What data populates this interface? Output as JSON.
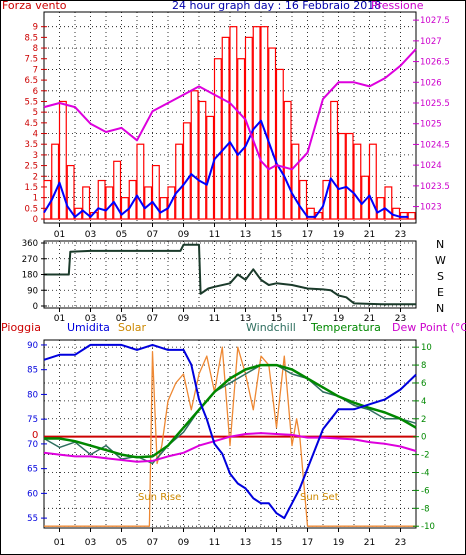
{
  "top_chart": {
    "title": "24 hour graph day : 16 Febbraio 2018",
    "left_label": "Forza vento",
    "right_label": "Pressione",
    "colors": {
      "wind": "#ff0000",
      "gust_line": "#0000ff",
      "pressure": "#dd00dd",
      "left_axis": "#cc0000",
      "right_axis": "#cc00cc"
    }
  },
  "mid_chart": {
    "right_labels": [
      "N",
      "W",
      "S",
      "E",
      "N"
    ]
  },
  "bottom_chart": {
    "labels": {
      "rain": "Pioggia",
      "humidity": "Umidita",
      "solar": "Solar",
      "windchill": "Windchill",
      "temperature": "Temperatura",
      "dewpoint": "Dew Point (°C)"
    },
    "annotations": {
      "sunrise": "Sun Rise",
      "sunset": "Sun Set",
      "rain_zero": "0"
    },
    "colors": {
      "humidity": "#0000dd",
      "solar": "#ee8833",
      "windchill": "#2f6f5f",
      "temperature": "#008800",
      "dewpoint": "#dd00dd",
      "rain": "#cc0000"
    }
  },
  "chart_data": [
    {
      "type": "line",
      "title": "24 hour graph day : 16 Febbraio 2018",
      "x_ticks": [
        "01",
        "03",
        "05",
        "07",
        "09",
        "11",
        "13",
        "15",
        "17",
        "19",
        "21",
        "23"
      ],
      "y_left_ticks": [
        "0",
        "0.5",
        "1",
        "1.5",
        "2",
        "2.5",
        "3",
        "3.5",
        "4",
        "4.5",
        "5",
        "5.5",
        "6",
        "6.5",
        "7",
        "7.5",
        "8",
        "8.5",
        "9"
      ],
      "y_left_range": [
        0,
        9.5
      ],
      "y_right_ticks": [
        "1023",
        "1023.5",
        "1024",
        "1024.5",
        "1025",
        "1025.5",
        "1026",
        "1026.5",
        "1027",
        "1027.5"
      ],
      "y_right_range": [
        1022.7,
        1027.6
      ],
      "grid": true,
      "series": [
        {
          "name": "Forza vento",
          "axis": "left",
          "style": "bars",
          "x": [
            0,
            0.5,
            1,
            1.5,
            2,
            2.5,
            3,
            3.5,
            4,
            4.5,
            5,
            5.5,
            6,
            6.5,
            7,
            7.5,
            8,
            8.5,
            9,
            9.5,
            10,
            10.5,
            11,
            11.5,
            12,
            12.5,
            13,
            13.5,
            14,
            14.5,
            15,
            15.5,
            16,
            16.5,
            17,
            17.5,
            18,
            18.5,
            19,
            19.5,
            20,
            20.5,
            21,
            21.5,
            22,
            22.5,
            23,
            23.5
          ],
          "values": [
            1.8,
            3.5,
            5.5,
            2.5,
            0.5,
            1.5,
            0.3,
            1.8,
            1.5,
            2.7,
            1,
            1.8,
            3.5,
            1.5,
            2.5,
            1,
            1.5,
            3.5,
            4.5,
            6,
            5.5,
            4.8,
            7.5,
            8.5,
            9,
            7.5,
            8.5,
            9,
            9,
            8,
            7,
            5.5,
            3.5,
            1.8,
            0.5,
            0.3,
            1.8,
            5.5,
            4,
            4,
            3.5,
            2,
            3.5,
            1,
            1.5,
            0.5,
            0.3,
            0.3
          ]
        },
        {
          "axis": "left",
          "style": "line",
          "x": [
            0,
            0.5,
            1,
            1.5,
            2,
            2.5,
            3,
            3.5,
            4,
            4.5,
            5,
            5.5,
            6,
            6.5,
            7,
            7.5,
            8,
            8.5,
            9,
            9.5,
            10,
            10.5,
            11,
            11.5,
            12,
            12.5,
            13,
            13.5,
            14,
            14.5,
            15,
            15.5,
            16,
            16.5,
            17,
            17.5,
            18,
            18.5,
            19,
            19.5,
            20,
            20.5,
            21,
            21.5,
            22,
            22.5,
            23,
            23.5
          ],
          "values": [
            0.3,
            0.9,
            1.7,
            0.6,
            0.1,
            0.4,
            0.1,
            0.5,
            0.4,
            0.8,
            0.2,
            0.5,
            1.1,
            0.5,
            0.8,
            0.3,
            0.5,
            1.2,
            1.6,
            2.1,
            1.8,
            1.6,
            2.8,
            3.2,
            3.6,
            3.0,
            3.4,
            4.2,
            4.6,
            3.6,
            2.6,
            2.0,
            1.2,
            0.6,
            0.1,
            0.1,
            0.6,
            1.9,
            1.4,
            1.5,
            1.2,
            0.7,
            1.1,
            0.3,
            0.5,
            0.2,
            0.1,
            0.1
          ]
        },
        {
          "name": "Pressione",
          "axis": "right",
          "style": "line",
          "x": [
            0,
            1,
            2,
            3,
            4,
            5,
            6,
            7,
            8,
            9,
            10,
            11,
            12,
            13,
            14,
            14.5,
            15,
            16,
            17,
            18,
            19,
            20,
            21,
            22,
            23,
            24
          ],
          "values": [
            1025.4,
            1025.5,
            1025.4,
            1025.0,
            1024.8,
            1024.9,
            1024.6,
            1025.3,
            1025.5,
            1025.7,
            1025.9,
            1025.7,
            1025.5,
            1025.1,
            1024.1,
            1023.9,
            1024.0,
            1023.9,
            1024.3,
            1025.6,
            1026.0,
            1026.0,
            1025.9,
            1026.1,
            1026.4,
            1026.8
          ]
        }
      ]
    },
    {
      "type": "line",
      "x_ticks": [
        "01",
        "03",
        "05",
        "07",
        "09",
        "11",
        "13",
        "15",
        "17",
        "19",
        "21",
        "23"
      ],
      "y_ticks": [
        "0",
        "90",
        "180",
        "270",
        "360"
      ],
      "y_range": [
        0,
        360
      ],
      "y_right_labels": [
        "N",
        "W",
        "S",
        "E",
        "N"
      ],
      "grid": true,
      "series": [
        {
          "x": [
            0,
            1.6,
            1.7,
            3,
            5,
            7,
            8.8,
            9,
            10,
            10.1,
            10.6,
            11,
            12,
            12.5,
            13,
            13.5,
            14,
            14.5,
            15,
            16,
            17,
            18,
            18.5,
            19,
            19.5,
            20,
            21,
            22,
            23,
            24
          ],
          "values": [
            180,
            180,
            310,
            315,
            315,
            315,
            315,
            350,
            350,
            70,
            100,
            110,
            130,
            180,
            150,
            210,
            150,
            120,
            130,
            120,
            100,
            95,
            90,
            60,
            50,
            15,
            12,
            10,
            10,
            10
          ]
        }
      ]
    },
    {
      "type": "line",
      "x_ticks": [
        "01",
        "03",
        "05",
        "07",
        "09",
        "11",
        "13",
        "15",
        "17",
        "19",
        "21",
        "23"
      ],
      "y_left_ticks": [
        "55",
        "60",
        "65",
        "70",
        "75",
        "80",
        "85",
        "90"
      ],
      "y_left_range": [
        53,
        91
      ],
      "y_right_ticks": [
        "-10",
        "-8",
        "-6",
        "-4",
        "-2",
        "0",
        "2",
        "4",
        "6",
        "8",
        "10"
      ],
      "y_right_range": [
        -10.2,
        10.8
      ],
      "grid": true,
      "series": [
        {
          "name": "Umidita",
          "axis": "left",
          "x": [
            0,
            1,
            2,
            3,
            4,
            5,
            6,
            7,
            8,
            9,
            9.5,
            10,
            10.5,
            11,
            11.5,
            12,
            12.5,
            13,
            13.5,
            14,
            14.5,
            15,
            15.5,
            16,
            16.5,
            17,
            17.5,
            18,
            19,
            20,
            21,
            22,
            23,
            24
          ],
          "values": [
            87,
            88,
            88,
            90,
            90,
            90,
            89,
            90,
            89,
            89,
            86,
            79,
            75,
            70,
            68,
            64,
            62,
            61,
            59,
            58,
            58,
            56,
            55,
            58,
            61,
            65,
            69,
            73,
            77,
            77,
            78,
            79,
            81,
            84
          ]
        },
        {
          "name": "Solar",
          "axis": "right",
          "x": [
            0,
            6.8,
            7.0,
            7.3,
            7.6,
            8.0,
            8.5,
            9.0,
            9.5,
            10.0,
            10.5,
            11.0,
            11.5,
            12.0,
            12.5,
            13.0,
            13.5,
            14.0,
            14.5,
            15.0,
            15.5,
            16.0,
            16.3,
            16.5,
            17.0,
            24
          ],
          "values": [
            -10,
            -10,
            9.5,
            -3,
            -1,
            4,
            6,
            7,
            3,
            7,
            9,
            5,
            10,
            -1,
            10,
            7,
            3,
            9,
            8,
            1,
            9,
            -1,
            2,
            0,
            -10,
            -10
          ]
        },
        {
          "name": "Windchill",
          "axis": "right",
          "x": [
            0,
            1,
            2,
            3,
            4,
            5,
            6,
            7,
            8,
            9,
            10,
            11,
            12,
            13,
            14,
            15,
            16,
            17,
            18,
            19,
            20,
            21,
            22,
            23,
            24
          ],
          "values": [
            -0.2,
            -1.2,
            -0.6,
            -2,
            -1,
            -2.5,
            -2.2,
            -3,
            -1,
            0.5,
            3,
            5,
            6,
            7,
            8,
            8,
            7,
            6.5,
            5,
            4.5,
            3.5,
            3,
            2,
            2,
            1.5
          ]
        },
        {
          "name": "Temperatura",
          "axis": "right",
          "x": [
            0,
            1,
            2,
            3,
            4,
            5,
            6,
            7,
            8,
            9,
            10,
            11,
            12,
            13,
            14,
            15,
            16,
            17,
            18,
            19,
            20,
            21,
            22,
            23,
            24
          ],
          "values": [
            -0.2,
            -0.2,
            -0.5,
            -1,
            -1.5,
            -2,
            -2.3,
            -2.2,
            -1,
            1,
            3,
            5,
            6.5,
            7.5,
            8,
            8,
            7.5,
            6.5,
            5.5,
            4.5,
            3.8,
            3.2,
            2.7,
            2,
            1
          ]
        },
        {
          "name": "Dew Point",
          "axis": "right",
          "x": [
            0,
            1,
            2,
            3,
            4,
            5,
            6,
            7,
            8,
            9,
            10,
            11,
            12,
            13,
            14,
            15,
            16,
            17,
            18,
            19,
            20,
            21,
            22,
            23,
            24
          ],
          "values": [
            -1.8,
            -2,
            -2.2,
            -2.2,
            -2.4,
            -2.6,
            -2.8,
            -2.7,
            -2.2,
            -1.8,
            -1,
            -0.5,
            0,
            0.3,
            0.4,
            0.3,
            0.2,
            -0.1,
            -0.1,
            -0.2,
            -0.3,
            -0.6,
            -0.8,
            -1.1,
            -1.6
          ]
        },
        {
          "name": "Pioggia",
          "axis": "right",
          "values_constant": 0
        }
      ]
    }
  ]
}
